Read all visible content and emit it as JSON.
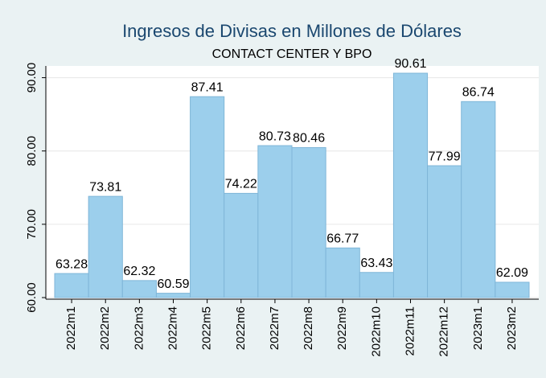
{
  "chart_data": {
    "type": "bar",
    "title": "Ingresos de Divisas en Millones de Dólares",
    "subtitle": "CONTACT CENTER Y BPO",
    "categories": [
      "2022m1",
      "2022m2",
      "2022m3",
      "2022m4",
      "2022m5",
      "2022m6",
      "2022m7",
      "2022m8",
      "2022m9",
      "2022m10",
      "2022m11",
      "2022m12",
      "2023m1",
      "2023m2"
    ],
    "values": [
      63.28,
      73.81,
      62.32,
      60.59,
      87.41,
      74.22,
      80.73,
      80.46,
      66.77,
      63.43,
      90.61,
      77.99,
      86.74,
      62.09
    ],
    "color": "#9ccfec",
    "ylim": [
      60,
      91.6
    ],
    "yticks": [
      {
        "value": 60,
        "label": "60.00"
      },
      {
        "value": 70,
        "label": "70.00"
      },
      {
        "value": 80,
        "label": "80.00"
      },
      {
        "value": 90,
        "label": "90.00"
      }
    ],
    "grid": true
  }
}
